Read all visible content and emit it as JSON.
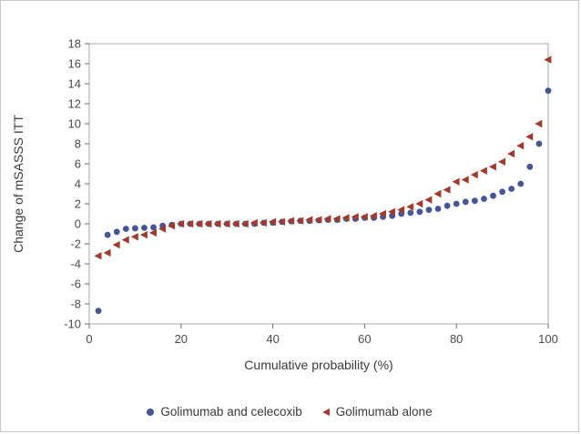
{
  "figure": {
    "background": "#ffffff",
    "border_color": "#c9c9c9"
  },
  "chart_data": {
    "type": "scatter",
    "title": "",
    "xlabel": "Cumulative probability (%)",
    "ylabel": "Change of mSASSS ITT",
    "xlim": [
      0,
      100
    ],
    "ylim": [
      -10,
      18
    ],
    "x_ticks": [
      0,
      20,
      40,
      60,
      80,
      100
    ],
    "y_ticks": [
      18,
      16,
      14,
      12,
      10,
      8,
      6,
      4,
      2,
      0,
      -2,
      -4,
      -6,
      -8,
      -10
    ],
    "grid": false,
    "legend_position": "bottom-center",
    "frame": true,
    "series": [
      {
        "name": "Golimumab and celecoxib",
        "marker": "circle",
        "color": "#445694",
        "points": [
          [
            2,
            -8.7
          ],
          [
            4,
            -1.1
          ],
          [
            6,
            -0.8
          ],
          [
            8,
            -0.5
          ],
          [
            10,
            -0.45
          ],
          [
            12,
            -0.4
          ],
          [
            14,
            -0.35
          ],
          [
            16,
            -0.2
          ],
          [
            18,
            -0.1
          ],
          [
            20,
            0
          ],
          [
            22,
            0
          ],
          [
            24,
            0
          ],
          [
            26,
            0
          ],
          [
            28,
            0
          ],
          [
            30,
            0
          ],
          [
            32,
            0
          ],
          [
            34,
            0
          ],
          [
            36,
            0
          ],
          [
            38,
            0.1
          ],
          [
            40,
            0.1
          ],
          [
            42,
            0.2
          ],
          [
            44,
            0.25
          ],
          [
            46,
            0.3
          ],
          [
            48,
            0.3
          ],
          [
            50,
            0.35
          ],
          [
            52,
            0.4
          ],
          [
            54,
            0.4
          ],
          [
            56,
            0.5
          ],
          [
            58,
            0.5
          ],
          [
            60,
            0.6
          ],
          [
            62,
            0.6
          ],
          [
            64,
            0.7
          ],
          [
            66,
            0.8
          ],
          [
            68,
            1.0
          ],
          [
            70,
            1.1
          ],
          [
            72,
            1.2
          ],
          [
            74,
            1.4
          ],
          [
            76,
            1.5
          ],
          [
            78,
            1.8
          ],
          [
            80,
            2.0
          ],
          [
            82,
            2.2
          ],
          [
            84,
            2.3
          ],
          [
            86,
            2.5
          ],
          [
            88,
            2.8
          ],
          [
            90,
            3.2
          ],
          [
            92,
            3.5
          ],
          [
            94,
            4.0
          ],
          [
            96,
            5.7
          ],
          [
            98,
            8.0
          ],
          [
            100,
            13.3
          ]
        ]
      },
      {
        "name": "Golimumab alone",
        "marker": "triangle-left",
        "color": "#A23A2E",
        "points": [
          [
            2,
            -3.2
          ],
          [
            4,
            -2.9
          ],
          [
            6,
            -2.1
          ],
          [
            8,
            -1.6
          ],
          [
            10,
            -1.3
          ],
          [
            12,
            -1.1
          ],
          [
            14,
            -0.9
          ],
          [
            16,
            -0.5
          ],
          [
            18,
            -0.2
          ],
          [
            20,
            0
          ],
          [
            22,
            0
          ],
          [
            24,
            0
          ],
          [
            26,
            0
          ],
          [
            28,
            0
          ],
          [
            30,
            0
          ],
          [
            32,
            0
          ],
          [
            34,
            0
          ],
          [
            36,
            0.1
          ],
          [
            38,
            0.1
          ],
          [
            40,
            0.2
          ],
          [
            42,
            0.2
          ],
          [
            44,
            0.3
          ],
          [
            46,
            0.3
          ],
          [
            48,
            0.4
          ],
          [
            50,
            0.4
          ],
          [
            52,
            0.5
          ],
          [
            54,
            0.5
          ],
          [
            56,
            0.6
          ],
          [
            58,
            0.7
          ],
          [
            60,
            0.7
          ],
          [
            62,
            0.8
          ],
          [
            64,
            1.0
          ],
          [
            66,
            1.2
          ],
          [
            68,
            1.4
          ],
          [
            70,
            1.7
          ],
          [
            72,
            2.0
          ],
          [
            74,
            2.4
          ],
          [
            76,
            3.0
          ],
          [
            78,
            3.4
          ],
          [
            80,
            4.2
          ],
          [
            82,
            4.4
          ],
          [
            84,
            4.9
          ],
          [
            86,
            5.3
          ],
          [
            88,
            5.7
          ],
          [
            90,
            6.2
          ],
          [
            92,
            7.0
          ],
          [
            94,
            7.8
          ],
          [
            96,
            8.7
          ],
          [
            98,
            10.0
          ],
          [
            100,
            16.4
          ]
        ]
      }
    ]
  }
}
